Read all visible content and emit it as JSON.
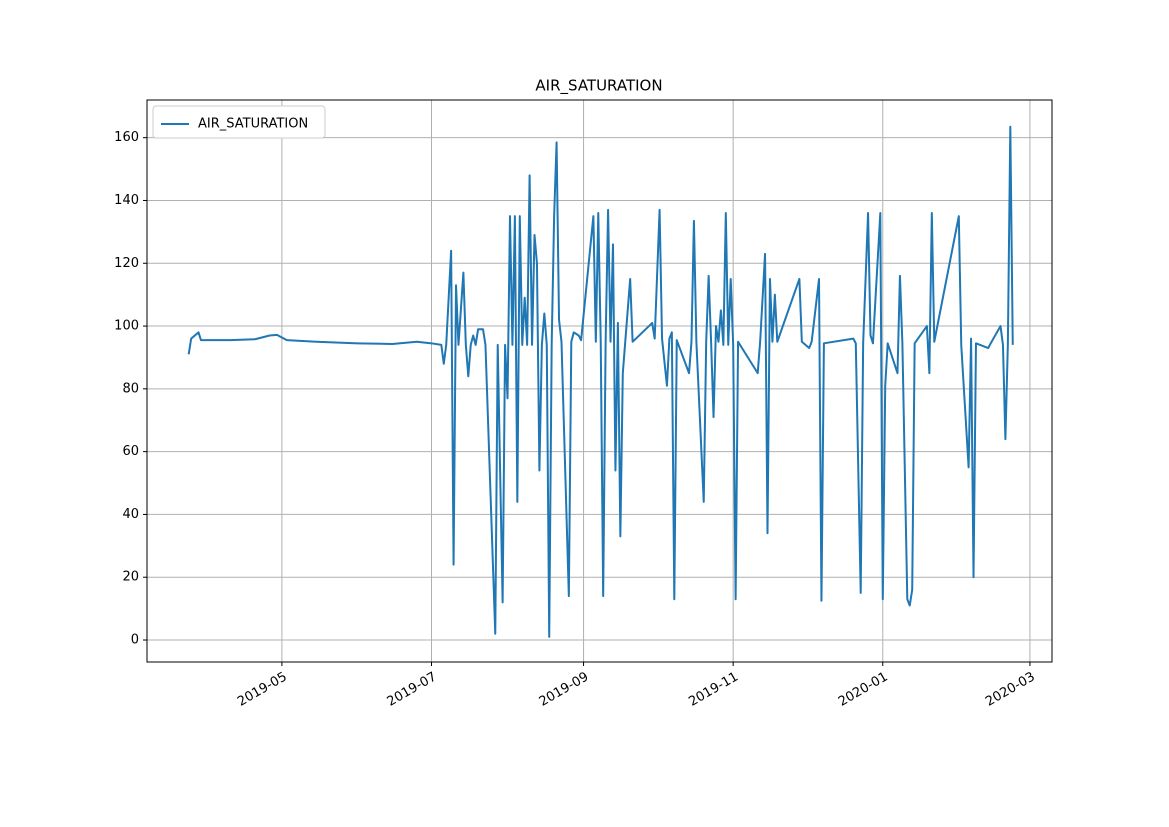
{
  "chart_data": {
    "type": "line",
    "title": "AIR_SATURATION",
    "x": [
      "2019-03-24",
      "2019-03-25",
      "2019-03-28",
      "2019-03-29",
      "2019-04-10",
      "2019-04-20",
      "2019-04-26",
      "2019-04-29",
      "2019-05-03",
      "2019-05-15",
      "2019-06-01",
      "2019-06-15",
      "2019-06-25",
      "2019-07-01",
      "2019-07-05",
      "2019-07-06",
      "2019-07-07",
      "2019-07-09",
      "2019-07-10",
      "2019-07-11",
      "2019-07-12",
      "2019-07-14",
      "2019-07-15",
      "2019-07-16",
      "2019-07-17",
      "2019-07-18",
      "2019-07-19",
      "2019-07-20",
      "2019-07-22",
      "2019-07-23",
      "2019-07-27",
      "2019-07-28",
      "2019-07-30",
      "2019-07-31",
      "2019-08-01",
      "2019-08-02",
      "2019-08-03",
      "2019-08-04",
      "2019-08-05",
      "2019-08-06",
      "2019-08-07",
      "2019-08-08",
      "2019-08-09",
      "2019-08-10",
      "2019-08-11",
      "2019-08-12",
      "2019-08-13",
      "2019-08-14",
      "2019-08-15",
      "2019-08-16",
      "2019-08-17",
      "2019-08-18",
      "2019-08-19",
      "2019-08-20",
      "2019-08-21",
      "2019-08-22",
      "2019-08-23",
      "2019-08-26",
      "2019-08-27",
      "2019-08-28",
      "2019-08-30",
      "2019-08-31",
      "2019-09-05",
      "2019-09-06",
      "2019-09-07",
      "2019-09-08",
      "2019-09-09",
      "2019-09-10",
      "2019-09-11",
      "2019-09-12",
      "2019-09-13",
      "2019-09-14",
      "2019-09-15",
      "2019-09-16",
      "2019-09-17",
      "2019-09-18",
      "2019-09-20",
      "2019-09-21",
      "2019-09-29",
      "2019-09-30",
      "2019-10-02",
      "2019-10-03",
      "2019-10-05",
      "2019-10-06",
      "2019-10-07",
      "2019-10-08",
      "2019-10-09",
      "2019-10-14",
      "2019-10-15",
      "2019-10-16",
      "2019-10-17",
      "2019-10-20",
      "2019-10-21",
      "2019-10-22",
      "2019-10-23",
      "2019-10-24",
      "2019-10-25",
      "2019-10-26",
      "2019-10-27",
      "2019-10-28",
      "2019-10-29",
      "2019-10-30",
      "2019-10-31",
      "2019-11-01",
      "2019-11-02",
      "2019-11-03",
      "2019-11-11",
      "2019-11-12",
      "2019-11-14",
      "2019-11-15",
      "2019-11-16",
      "2019-11-17",
      "2019-11-18",
      "2019-11-19",
      "2019-11-28",
      "2019-11-29",
      "2019-12-02",
      "2019-12-03",
      "2019-12-06",
      "2019-12-07",
      "2019-12-08",
      "2019-12-20",
      "2019-12-21",
      "2019-12-23",
      "2019-12-24",
      "2019-12-26",
      "2019-12-27",
      "2019-12-28",
      "2019-12-31",
      "2020-01-01",
      "2020-01-02",
      "2020-01-03",
      "2020-01-07",
      "2020-01-08",
      "2020-01-09",
      "2020-01-11",
      "2020-01-12",
      "2020-01-13",
      "2020-01-14",
      "2020-01-19",
      "2020-01-20",
      "2020-01-21",
      "2020-01-22",
      "2020-02-01",
      "2020-02-02",
      "2020-02-05",
      "2020-02-06",
      "2020-02-07",
      "2020-02-08",
      "2020-02-13",
      "2020-02-14",
      "2020-02-18",
      "2020-02-19",
      "2020-02-20",
      "2020-02-21",
      "2020-02-22",
      "2020-02-23"
    ],
    "series": [
      {
        "name": "AIR_SATURATION",
        "color": "#1f77b4",
        "values": [
          91,
          96,
          98,
          95.5,
          95.5,
          95.8,
          97,
          97.2,
          95.5,
          95,
          94.5,
          94.3,
          95,
          94.5,
          94,
          88,
          94,
          124,
          24,
          113,
          94,
          117,
          94,
          84,
          94,
          97,
          94,
          99,
          99,
          94,
          2,
          94,
          12,
          94,
          77,
          135,
          94,
          135,
          44,
          135,
          94,
          109,
          94,
          148,
          94,
          129,
          120,
          54,
          94,
          104,
          94,
          1,
          94,
          135,
          158.5,
          102,
          95,
          14,
          95,
          98,
          97,
          95.5,
          135,
          95,
          136,
          95,
          14,
          95,
          137,
          95,
          126,
          54,
          101,
          33,
          85,
          95,
          115,
          95,
          101,
          96,
          137,
          96,
          81,
          96,
          98,
          13,
          95.5,
          85,
          95,
          133.5,
          95,
          44,
          95,
          116,
          95,
          71,
          100,
          95,
          105,
          94,
          136,
          94,
          115,
          94,
          13,
          95,
          85,
          95,
          123,
          34,
          115,
          95,
          110,
          95,
          115,
          95,
          93,
          95,
          115,
          12.5,
          94.5,
          96,
          94.5,
          15,
          94.5,
          136,
          97,
          94.5,
          136,
          13,
          81,
          94.5,
          85,
          116,
          94.5,
          13,
          11,
          16,
          94.5,
          100,
          85,
          136,
          95,
          135,
          94,
          55,
          96,
          20,
          94.5,
          93,
          94.5,
          100,
          94,
          64,
          94,
          163.5,
          94
        ]
      }
    ],
    "xlim": [
      "2019-03-07",
      "2020-03-10"
    ],
    "xticks": [
      {
        "value": "2019-05-01",
        "label": "2019-05"
      },
      {
        "value": "2019-07-01",
        "label": "2019-07"
      },
      {
        "value": "2019-09-01",
        "label": "2019-09"
      },
      {
        "value": "2019-11-01",
        "label": "2019-11"
      },
      {
        "value": "2020-01-01",
        "label": "2020-01"
      },
      {
        "value": "2020-03-01",
        "label": "2020-03"
      }
    ],
    "ylim": [
      -7,
      172
    ],
    "yticks": [
      0,
      20,
      40,
      60,
      80,
      100,
      120,
      140,
      160
    ],
    "grid": true,
    "legend": "upper left"
  }
}
